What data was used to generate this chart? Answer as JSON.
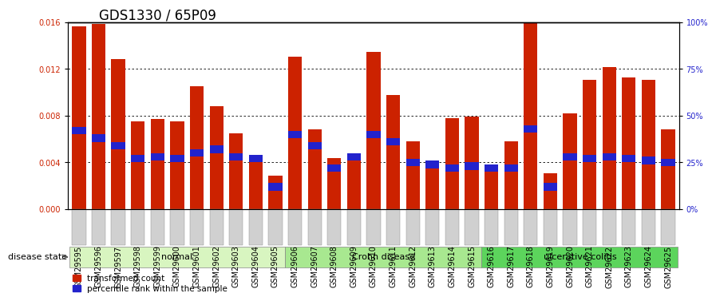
{
  "title": "GDS1330 / 65P09",
  "samples": [
    "GSM29595",
    "GSM29596",
    "GSM29597",
    "GSM29598",
    "GSM29599",
    "GSM29600",
    "GSM29601",
    "GSM29602",
    "GSM29603",
    "GSM29604",
    "GSM29605",
    "GSM29606",
    "GSM29607",
    "GSM29608",
    "GSM29609",
    "GSM29610",
    "GSM29611",
    "GSM29612",
    "GSM29613",
    "GSM29614",
    "GSM29615",
    "GSM29616",
    "GSM29617",
    "GSM29618",
    "GSM29619",
    "GSM29620",
    "GSM29621",
    "GSM29622",
    "GSM29623",
    "GSM29624",
    "GSM29625"
  ],
  "transformed_count": [
    0.01565,
    0.01585,
    0.01285,
    0.0075,
    0.0077,
    0.0075,
    0.01055,
    0.0088,
    0.0065,
    0.0042,
    0.00285,
    0.01305,
    0.0068,
    0.0044,
    0.0044,
    0.01345,
    0.0098,
    0.0058,
    0.0038,
    0.0078,
    0.0079,
    0.0038,
    0.0058,
    0.01595,
    0.0031,
    0.0082,
    0.01105,
    0.01215,
    0.01125,
    0.01105,
    0.0068
  ],
  "percentile_values": [
    42,
    38,
    34,
    27,
    28,
    27,
    30,
    32,
    28,
    27,
    12,
    40,
    34,
    22,
    28,
    40,
    36,
    25,
    24,
    22,
    23,
    22,
    22,
    43,
    12,
    28,
    27,
    28,
    27,
    26,
    25
  ],
  "group_starts": [
    0,
    11,
    21
  ],
  "group_ends": [
    10,
    20,
    30
  ],
  "group_labels": [
    "normal",
    "Crohn disease",
    "ulcerative colitis"
  ],
  "group_colors": [
    "#d8f5c0",
    "#a8e890",
    "#5cd45c"
  ],
  "bar_color": "#cc2200",
  "percentile_color": "#2222cc",
  "bg_color": "#ffffff",
  "ylim_left": [
    0,
    0.016
  ],
  "ylim_right": [
    0,
    100
  ],
  "yticks_left": [
    0,
    0.004,
    0.008,
    0.012,
    0.016
  ],
  "yticks_right": [
    0,
    25,
    50,
    75,
    100
  ],
  "title_fontsize": 12,
  "tick_fontsize": 7,
  "label_fontsize": 8,
  "xtick_bg": "#d0d0d0"
}
